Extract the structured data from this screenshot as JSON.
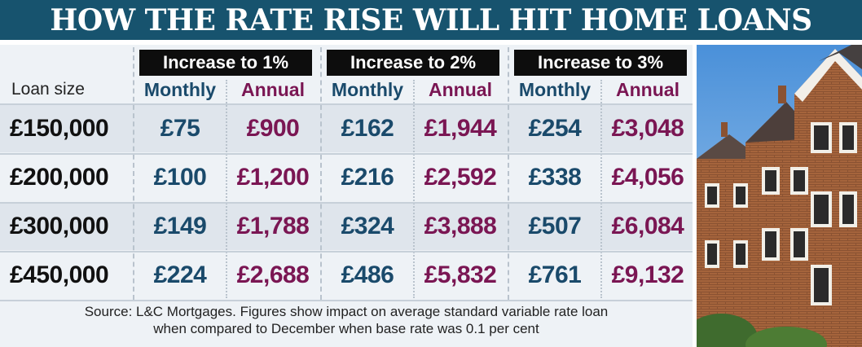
{
  "title": "HOW THE RATE RISE WILL HIT HOME LOANS",
  "row_header_label": "Loan size",
  "groups": [
    {
      "label": "Increase to 1%",
      "monthly_label": "Monthly",
      "annual_label": "Annual"
    },
    {
      "label": "Increase to 2%",
      "monthly_label": "Monthly",
      "annual_label": "Annual"
    },
    {
      "label": "Increase to 3%",
      "monthly_label": "Monthly",
      "annual_label": "Annual"
    }
  ],
  "rows": [
    {
      "loan": "£150,000",
      "cells": [
        "£75",
        "£900",
        "£162",
        "£1,944",
        "£254",
        "£3,048"
      ]
    },
    {
      "loan": "£200,000",
      "cells": [
        "£100",
        "£1,200",
        "£216",
        "£2,592",
        "£338",
        "£4,056"
      ]
    },
    {
      "loan": "£300,000",
      "cells": [
        "£149",
        "£1,788",
        "£324",
        "£3,888",
        "£507",
        "£6,084"
      ]
    },
    {
      "loan": "£450,000",
      "cells": [
        "£224",
        "£2,688",
        "£486",
        "£5,832",
        "£761",
        "£9,132"
      ]
    }
  ],
  "source_line1": "Source: L&C Mortgages. Figures show impact on average standard variable rate loan",
  "source_line2": "when compared to December when base rate was 0.1 per cent",
  "colors": {
    "banner": "#17536e",
    "monthly": "#1a4a6b",
    "annual": "#7a1653",
    "header_bg": "#0d0d0d"
  },
  "chart_data": {
    "type": "table",
    "title": "HOW THE RATE RISE WILL HIT HOME LOANS",
    "columns": [
      "Loan size",
      "Increase to 1% Monthly",
      "Increase to 1% Annual",
      "Increase to 2% Monthly",
      "Increase to 2% Annual",
      "Increase to 3% Monthly",
      "Increase to 3% Annual"
    ],
    "rows": [
      [
        "£150,000",
        75,
        900,
        162,
        1944,
        254,
        3048
      ],
      [
        "£200,000",
        100,
        1200,
        216,
        2592,
        338,
        4056
      ],
      [
        "£300,000",
        149,
        1788,
        324,
        3888,
        507,
        6084
      ],
      [
        "£450,000",
        224,
        2688,
        486,
        5832,
        761,
        9132
      ]
    ]
  }
}
